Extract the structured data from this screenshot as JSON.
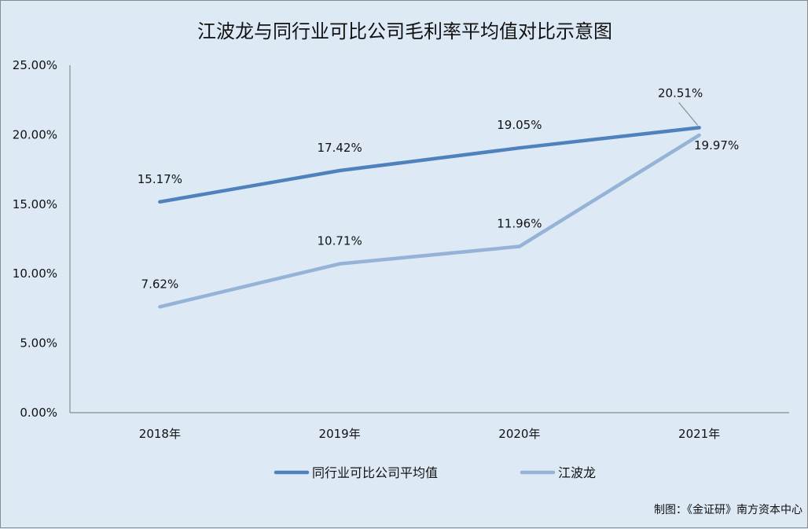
{
  "chart_data": {
    "type": "line",
    "title": "江波龙与同行业可比公司毛利率平均值对比示意图",
    "categories": [
      "2018年",
      "2019年",
      "2020年",
      "2021年"
    ],
    "y_tick_labels": [
      "0.00%",
      "5.00%",
      "10.00%",
      "15.00%",
      "20.00%",
      "25.00%"
    ],
    "ylim": [
      0,
      25
    ],
    "y_unit": "%",
    "grid": false,
    "legend_position": "bottom",
    "series": [
      {
        "name": "同行业可比公司平均值",
        "values": [
          15.17,
          17.42,
          19.05,
          20.51
        ],
        "labels": [
          "15.17%",
          "17.42%",
          "19.05%",
          "20.51%"
        ],
        "color": "#4f81bd"
      },
      {
        "name": "江波龙",
        "values": [
          7.62,
          10.71,
          11.96,
          19.97
        ],
        "labels": [
          "7.62%",
          "10.71%",
          "11.96%",
          "19.97%"
        ],
        "color": "#95b3d7"
      }
    ],
    "credit": "制图：《金证研》南方资本中心"
  }
}
